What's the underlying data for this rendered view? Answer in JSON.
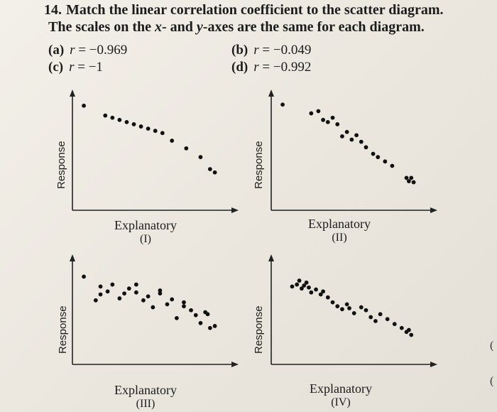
{
  "question": {
    "number": "14.",
    "line1": "Match the linear correlation coefficient to the scatter diagram.",
    "line2_a": "The scales on the ",
    "line2_x": "x",
    "line2_b": "- and ",
    "line2_y": "y",
    "line2_c": "-axes are the same for each diagram."
  },
  "choices": [
    {
      "label": "(a)",
      "r_symbol": "r",
      "value": "= −0.969"
    },
    {
      "label": "(b)",
      "r_symbol": "r",
      "value": "= −0.049"
    },
    {
      "label": "(c)",
      "r_symbol": "r",
      "value": "= −1"
    },
    {
      "label": "(d)",
      "r_symbol": "r",
      "value": "= −0.992"
    }
  ],
  "panels": [
    {
      "ylabel": "Response",
      "xlabel": "Explanatory",
      "numeral": "(I)"
    },
    {
      "ylabel": "Response",
      "xlabel": "Explanatory",
      "numeral": "(II)"
    },
    {
      "ylabel": "Response",
      "xlabel": "Explanatory",
      "numeral": "(III)"
    },
    {
      "ylabel": "Response",
      "xlabel": "Explanatory",
      "numeral": "(IV)"
    }
  ],
  "chart_data": [
    {
      "type": "scatter",
      "x": [
        0.3,
        1.2,
        1.5,
        1.8,
        2.1,
        2.4,
        2.7,
        3.0,
        3.3,
        3.6,
        4.0,
        4.6,
        5.2,
        5.6,
        5.8
      ],
      "y": [
        9.3,
        8.4,
        8.2,
        8.0,
        7.8,
        7.6,
        7.4,
        7.2,
        7.0,
        6.8,
        6.1,
        5.4,
        4.6,
        3.5,
        3.2
      ]
    },
    {
      "type": "scatter",
      "x": [
        0.3,
        1.5,
        1.8,
        2.0,
        2.2,
        2.4,
        2.6,
        2.8,
        3.0,
        3.2,
        3.4,
        3.6,
        3.8,
        4.1,
        4.3,
        4.6,
        4.9,
        5.5,
        5.6,
        5.7,
        5.8
      ],
      "y": [
        9.4,
        8.6,
        8.8,
        8.0,
        7.8,
        8.2,
        7.6,
        6.5,
        6.9,
        6.2,
        6.6,
        6.0,
        5.5,
        4.9,
        4.6,
        4.2,
        3.8,
        2.7,
        2.4,
        2.7,
        2.3
      ]
    },
    {
      "type": "scatter",
      "x": [
        0.3,
        0.8,
        1.0,
        1.3,
        1.5,
        1.8,
        2.0,
        2.2,
        2.5,
        2.8,
        3.0,
        3.2,
        3.5,
        3.8,
        4.0,
        4.2,
        4.5,
        4.8,
        5.0,
        5.2,
        5.4,
        5.6,
        5.8,
        1.0,
        2.5,
        3.5,
        4.5,
        5.5
      ],
      "y": [
        8.6,
        6.2,
        6.8,
        7.1,
        7.8,
        6.4,
        6.9,
        7.4,
        7.0,
        6.2,
        6.6,
        5.5,
        7.2,
        5.8,
        6.3,
        4.4,
        5.6,
        5.2,
        4.7,
        3.9,
        5.0,
        3.4,
        3.6,
        7.6,
        7.8,
        6.9,
        6.0,
        4.8
      ]
    },
    {
      "type": "scatter",
      "x": [
        0.7,
        0.9,
        1.0,
        1.1,
        1.2,
        1.3,
        1.4,
        1.5,
        1.7,
        1.9,
        2.0,
        2.2,
        2.4,
        2.6,
        2.8,
        3.0,
        3.1,
        3.3,
        3.6,
        3.8,
        4.0,
        4.2,
        4.4,
        4.7,
        5.0,
        5.3,
        5.5,
        5.6,
        5.7
      ],
      "y": [
        7.6,
        7.8,
        8.2,
        7.4,
        7.7,
        8.0,
        7.5,
        7.0,
        7.3,
        6.8,
        7.1,
        6.5,
        6.0,
        5.6,
        5.3,
        5.8,
        5.4,
        4.9,
        5.5,
        5.2,
        4.5,
        4.1,
        4.8,
        4.3,
        3.8,
        3.4,
        3.0,
        3.2,
        2.7
      ]
    }
  ]
}
